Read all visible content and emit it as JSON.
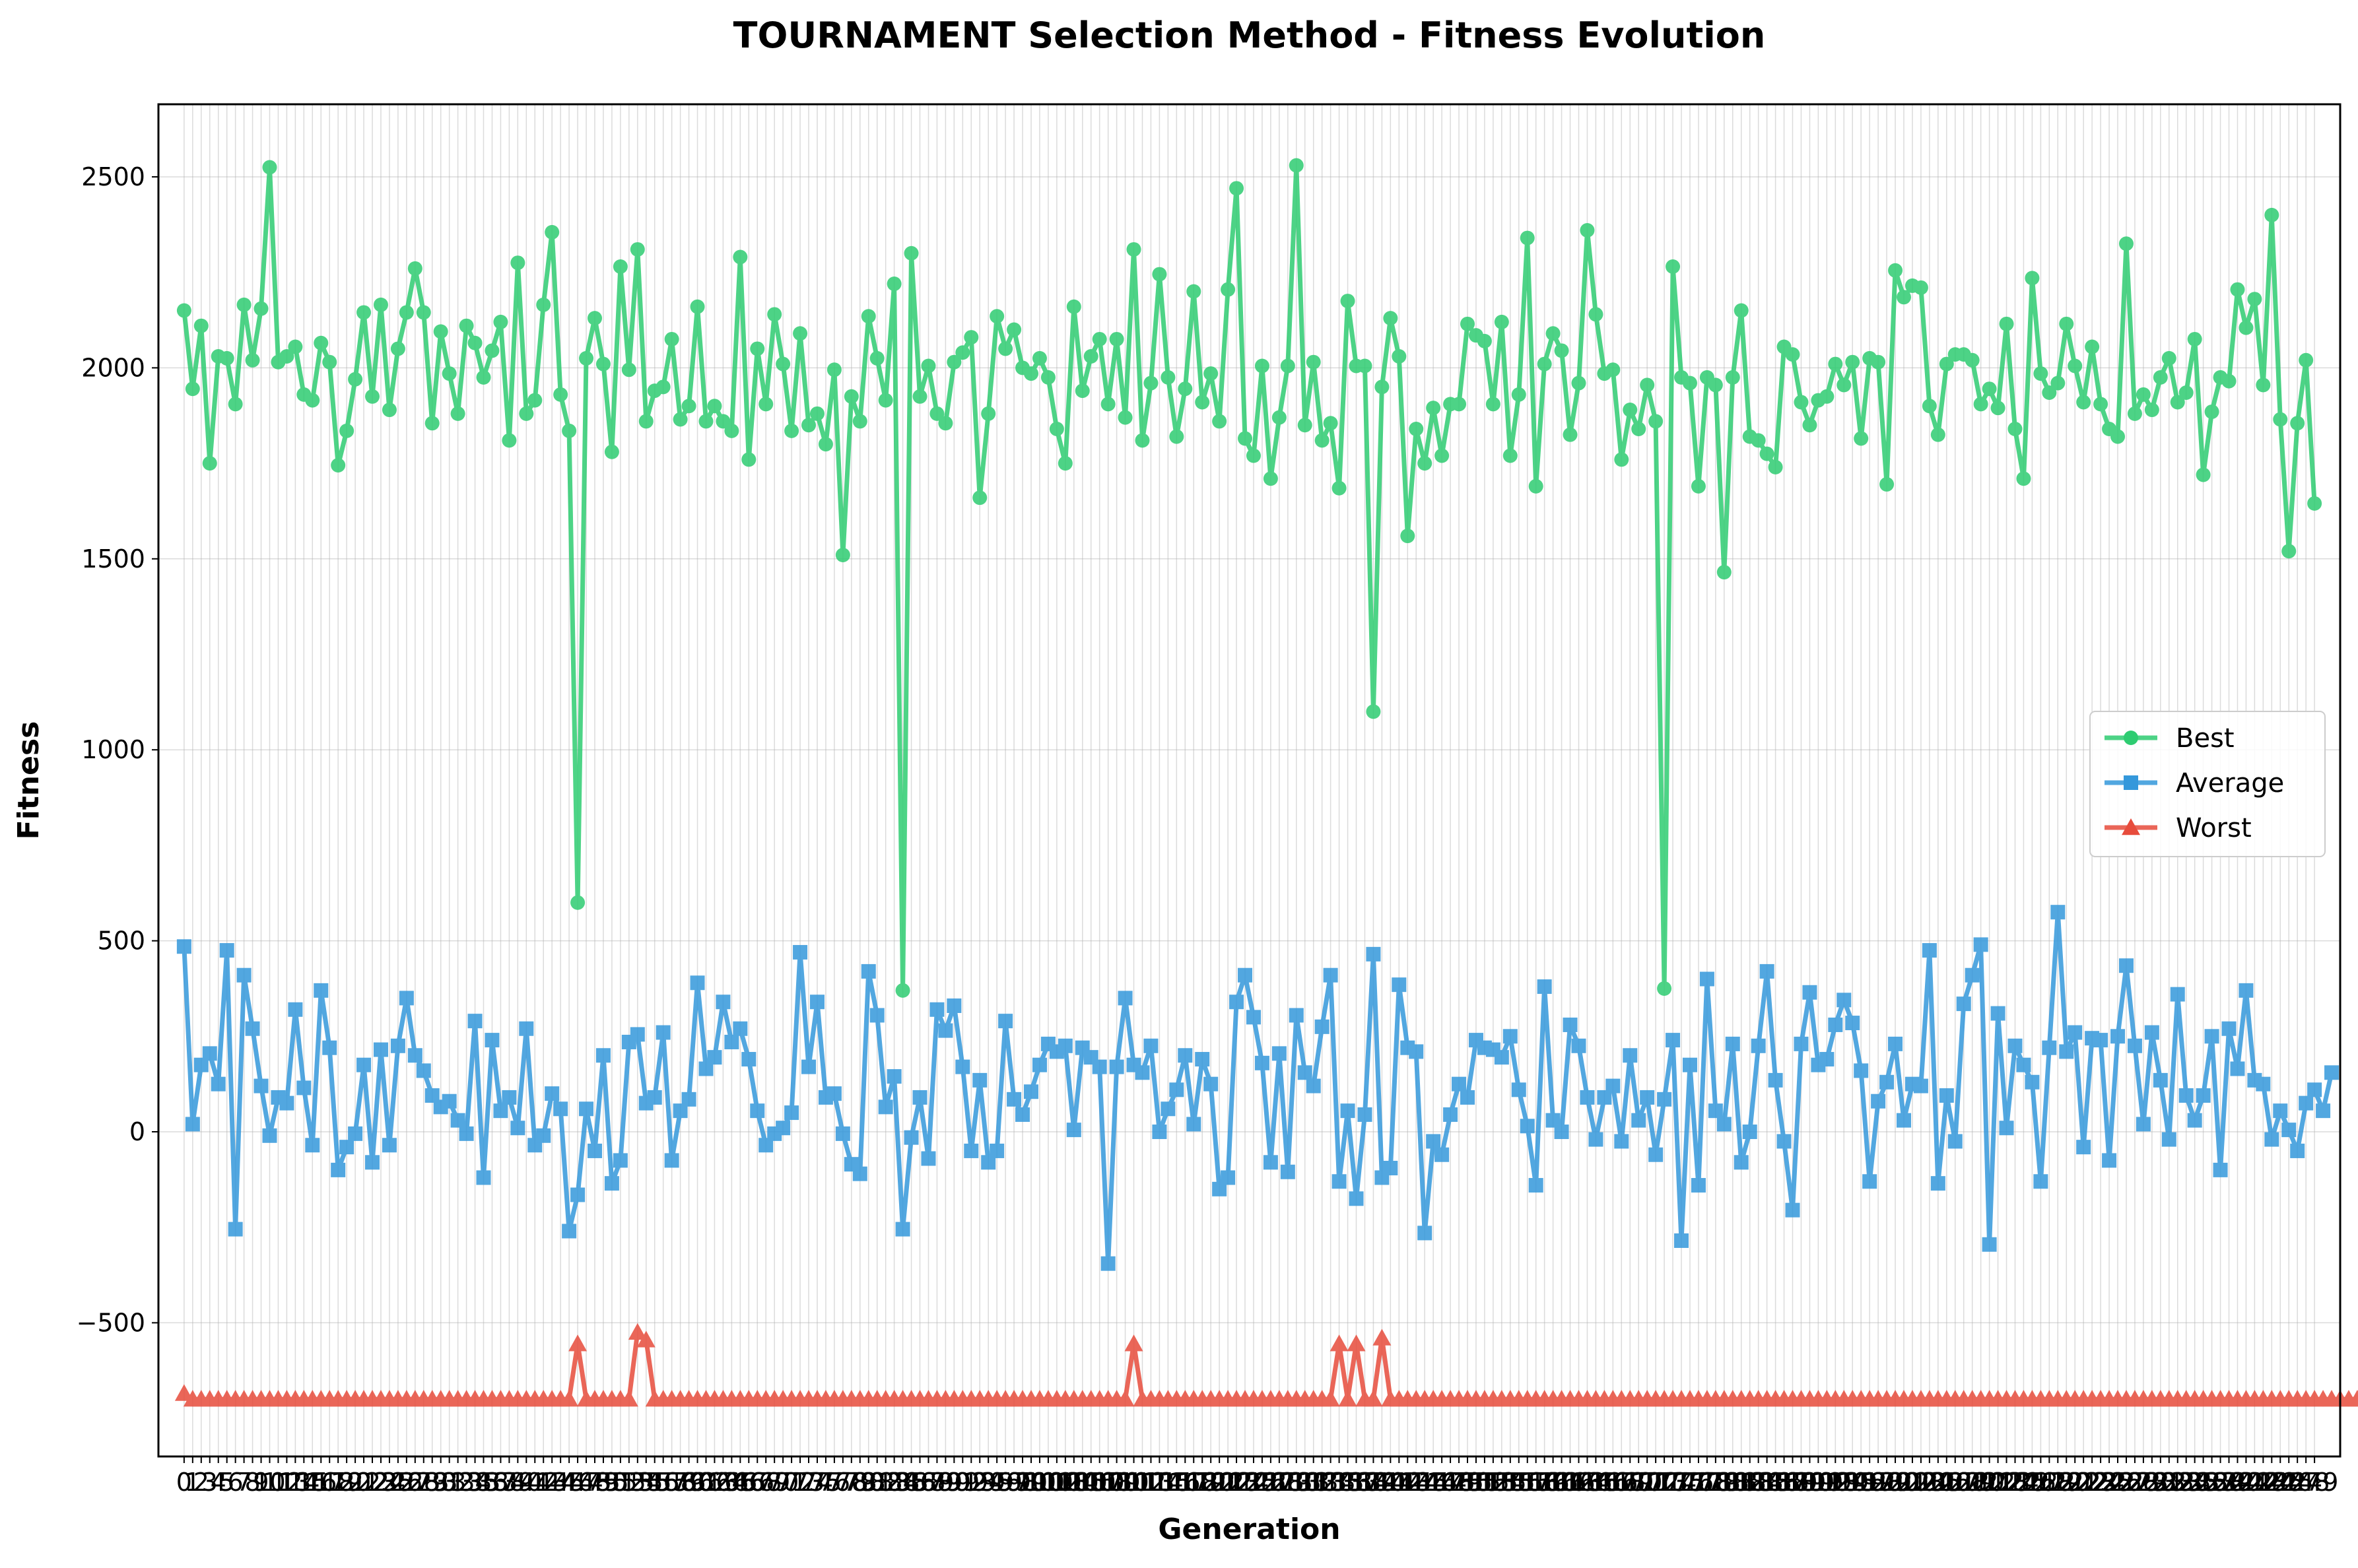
{
  "chart_data": {
    "type": "line",
    "title": "TOURNAMENT Selection Method - Fitness Evolution",
    "xlabel": "Generation",
    "ylabel": "Fitness",
    "xlim": [
      -3,
      252
    ],
    "ylim": [
      -850,
      2690
    ],
    "yticks": [
      -500,
      0,
      500,
      1000,
      1500,
      2000,
      2500
    ],
    "grid": true,
    "legend_position": "center-right",
    "x_start": 0,
    "x_end": 249,
    "x_tick_step": 1,
    "series": [
      {
        "name": "Best",
        "color": "#2ecc71",
        "marker": "circle",
        "values": [
          2150,
          1945,
          2110,
          1750,
          2030,
          2025,
          1905,
          2165,
          2020,
          2155,
          2525,
          2015,
          2030,
          2055,
          1930,
          1915,
          2065,
          2015,
          1745,
          1835,
          1970,
          2145,
          1925,
          2165,
          1890,
          2050,
          2145,
          2260,
          2145,
          1855,
          2095,
          1985,
          1880,
          2110,
          2065,
          1975,
          2045,
          2120,
          1810,
          2275,
          1880,
          1915,
          2165,
          2355,
          1930,
          1835,
          600,
          2025,
          2130,
          2010,
          1780,
          2265,
          1995,
          2310,
          1860,
          1940,
          1950,
          2075,
          1865,
          1900,
          2160,
          1860,
          1900,
          1860,
          1835,
          2290,
          1760,
          2050,
          1905,
          2140,
          2010,
          1835,
          2090,
          1850,
          1880,
          1800,
          1995,
          1510,
          1925,
          1860,
          2135,
          2025,
          1915,
          2220,
          370,
          2300,
          1925,
          2005,
          1880,
          1855,
          2015,
          2040,
          2080,
          1660,
          1880,
          2135,
          2050,
          2100,
          2000,
          1985,
          2025,
          1975,
          1840,
          1750,
          2160,
          1940,
          2030,
          2075,
          1905,
          2075,
          1870,
          2310,
          1810,
          1960,
          2245,
          1975,
          1820,
          1945,
          2200,
          1910,
          1985,
          1860,
          2205,
          2470,
          1815,
          1770,
          2005,
          1710,
          1870,
          2005,
          2530,
          1850,
          2015,
          1810,
          1855,
          1685,
          2175,
          2005,
          2005,
          1100,
          1950,
          2130,
          2030,
          1560,
          1840,
          1750,
          1895,
          1770,
          1905,
          1905,
          2115,
          2085,
          2070,
          1905,
          2120,
          1770,
          1930,
          2340,
          1690,
          2010,
          2090,
          2045,
          1825,
          1960,
          2360,
          2140,
          1985,
          1995,
          1760,
          1890,
          1840,
          1955,
          1860,
          375,
          2265,
          1975,
          1960,
          1690,
          1975,
          1955,
          1465,
          1975,
          2150,
          1820,
          1810,
          1775,
          1740,
          2055,
          2035,
          1910,
          1850,
          1915,
          1925,
          2010,
          1955,
          2015,
          1815,
          2025,
          2015,
          1695,
          2255,
          2185,
          2215,
          2210,
          1900,
          1825,
          2010,
          2035,
          2035,
          2020,
          1905,
          1945,
          1895,
          2115,
          1840,
          1710,
          2235,
          1985,
          1935,
          1960,
          2115,
          2005,
          1910,
          2055,
          1905,
          1840,
          1820,
          2325,
          1880,
          1930,
          1890,
          1975,
          2025,
          1910,
          1935,
          2075,
          1720,
          1885,
          1975,
          1965,
          2205,
          2105,
          2180,
          1955,
          2400,
          1865,
          1520,
          1855,
          2020,
          1645
        ]
      },
      {
        "name": "Average",
        "color": "#3498db",
        "marker": "square",
        "values": [
          485,
          20,
          175,
          205,
          125,
          475,
          -255,
          410,
          270,
          120,
          -10,
          90,
          75,
          320,
          115,
          -35,
          370,
          220,
          -100,
          -40,
          -5,
          175,
          -80,
          215,
          -35,
          225,
          350,
          200,
          160,
          95,
          65,
          80,
          30,
          -5,
          290,
          -120,
          240,
          55,
          90,
          10,
          270,
          -35,
          -10,
          100,
          60,
          -260,
          -165,
          60,
          -50,
          200,
          -135,
          -75,
          235,
          255,
          75,
          90,
          260,
          -75,
          55,
          85,
          390,
          165,
          195,
          340,
          235,
          270,
          190,
          55,
          -35,
          -5,
          10,
          50,
          470,
          170,
          340,
          90,
          100,
          -5,
          -85,
          -110,
          420,
          305,
          65,
          145,
          -255,
          -15,
          90,
          -70,
          320,
          265,
          330,
          170,
          -50,
          135,
          -80,
          -50,
          290,
          85,
          45,
          105,
          175,
          230,
          210,
          225,
          5,
          220,
          195,
          170,
          -345,
          170,
          350,
          175,
          155,
          225,
          0,
          60,
          110,
          200,
          20,
          190,
          125,
          -150,
          -120,
          340,
          410,
          300,
          180,
          -80,
          205,
          -105,
          305,
          155,
          120,
          275,
          410,
          -130,
          55,
          -175,
          45,
          465,
          -120,
          -95,
          385,
          220,
          210,
          -265,
          -25,
          -60,
          45,
          125,
          90,
          240,
          220,
          215,
          195,
          250,
          110,
          15,
          -140,
          380,
          30,
          0,
          280,
          225,
          90,
          -20,
          90,
          120,
          -25,
          200,
          30,
          90,
          -60,
          85,
          240,
          -285,
          175,
          -140,
          400,
          55,
          20,
          230,
          -80,
          0,
          225,
          420,
          135,
          -25,
          -205,
          230,
          365,
          175,
          190,
          280,
          345,
          285,
          160,
          -130,
          80,
          130,
          230,
          30,
          125,
          120,
          475,
          -135,
          95,
          -25,
          335,
          410,
          490,
          -295,
          310,
          10,
          225,
          175,
          130,
          -130,
          220,
          575,
          210,
          260,
          -40,
          245,
          240,
          -75,
          250,
          435,
          225,
          20,
          260,
          135,
          -20,
          360,
          95,
          30,
          95,
          250,
          -100,
          270,
          165,
          370,
          135,
          125,
          -20,
          55,
          5,
          -50,
          75,
          110,
          55,
          155
        ]
      },
      {
        "name": "Worst",
        "color": "#e74c3c",
        "marker": "triangle",
        "values": [
          -685,
          -700,
          -700,
          -700,
          -700,
          -700,
          -700,
          -700,
          -700,
          -700,
          -700,
          -700,
          -700,
          -700,
          -700,
          -700,
          -700,
          -700,
          -700,
          -700,
          -700,
          -700,
          -700,
          -700,
          -700,
          -700,
          -700,
          -700,
          -700,
          -700,
          -700,
          -700,
          -700,
          -700,
          -700,
          -700,
          -700,
          -700,
          -700,
          -700,
          -700,
          -700,
          -700,
          -700,
          -700,
          -700,
          -555,
          -700,
          -700,
          -700,
          -700,
          -700,
          -700,
          -525,
          -545,
          -700,
          -700,
          -700,
          -700,
          -700,
          -700,
          -700,
          -700,
          -700,
          -700,
          -700,
          -700,
          -700,
          -700,
          -700,
          -700,
          -700,
          -700,
          -700,
          -700,
          -700,
          -700,
          -700,
          -700,
          -700,
          -700,
          -700,
          -700,
          -700,
          -700,
          -700,
          -700,
          -700,
          -700,
          -700,
          -700,
          -700,
          -700,
          -700,
          -700,
          -700,
          -700,
          -700,
          -700,
          -700,
          -700,
          -700,
          -700,
          -700,
          -700,
          -700,
          -700,
          -700,
          -700,
          -700,
          -700,
          -555,
          -700,
          -700,
          -700,
          -700,
          -700,
          -700,
          -700,
          -700,
          -700,
          -700,
          -700,
          -700,
          -700,
          -700,
          -700,
          -700,
          -700,
          -700,
          -700,
          -700,
          -700,
          -700,
          -700,
          -555,
          -700,
          -555,
          -700,
          -700,
          -540,
          -700,
          -700,
          -700,
          -700,
          -700,
          -700,
          -700,
          -700,
          -700,
          -700,
          -700,
          -700,
          -700,
          -700,
          -700,
          -700,
          -700,
          -700,
          -700,
          -700,
          -700,
          -700,
          -700,
          -700,
          -700,
          -700,
          -700,
          -700,
          -700,
          -700,
          -700,
          -700,
          -700,
          -700,
          -700,
          -700,
          -700,
          -700,
          -700,
          -700,
          -700,
          -700,
          -700,
          -700,
          -700,
          -700,
          -700,
          -700,
          -700,
          -700,
          -700,
          -700,
          -700,
          -700,
          -700,
          -700,
          -700,
          -700,
          -700,
          -700,
          -700,
          -700,
          -700,
          -700,
          -700,
          -700,
          -700,
          -700,
          -700,
          -700,
          -700,
          -700,
          -700,
          -700,
          -700,
          -700,
          -700,
          -700,
          -700,
          -700,
          -700,
          -700,
          -700,
          -700,
          -700,
          -700,
          -700,
          -700,
          -700,
          -700,
          -700,
          -700,
          -700,
          -700,
          -700,
          -700,
          -700,
          -700,
          -700,
          -700,
          -700,
          -700,
          -700,
          -700,
          -700,
          -700,
          -700,
          -700,
          -700,
          -700,
          -700,
          -700,
          -700,
          -700
        ]
      }
    ]
  }
}
